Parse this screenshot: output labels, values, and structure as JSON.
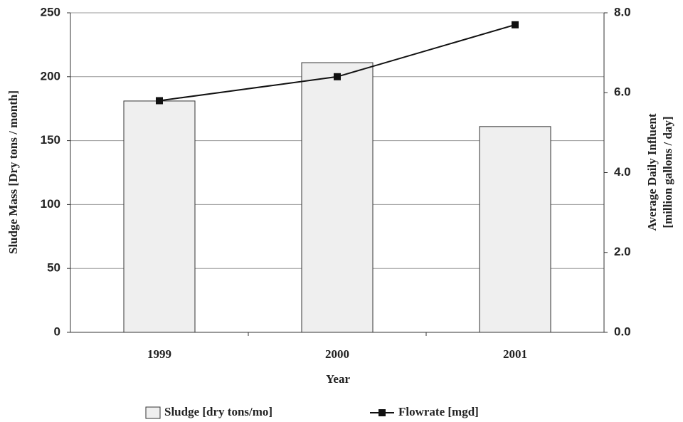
{
  "chart_data": {
    "type": "bar_line",
    "categories": [
      "1999",
      "2000",
      "2001"
    ],
    "x_label": "Year",
    "y_label": "Sludge Mass  [Dry tons / month]",
    "y2_label": [
      "Average Daily Influent",
      "[million gallons / day]"
    ],
    "series": [
      {
        "name": "Sludge [dry tons/mo]",
        "type": "bar",
        "color": "#efefef",
        "values": [
          181,
          211,
          161
        ]
      },
      {
        "name": "Flowrate [mgd]",
        "type": "line",
        "axis": "y2",
        "color": "#111111",
        "values": [
          5.8,
          6.4,
          7.7
        ]
      }
    ],
    "ylim": [
      0,
      250
    ],
    "yticks": [
      0,
      50,
      100,
      150,
      200,
      250
    ],
    "y2lim": [
      0,
      8
    ],
    "y2ticks": [
      {
        "value": 0,
        "label": "0.0"
      },
      {
        "value": 2,
        "label": "2.0"
      },
      {
        "value": 4,
        "label": "4.0"
      },
      {
        "value": 6,
        "label": "6.0"
      },
      {
        "value": 8,
        "label": "8.0"
      }
    ],
    "grid": true,
    "legend": "bottom"
  }
}
